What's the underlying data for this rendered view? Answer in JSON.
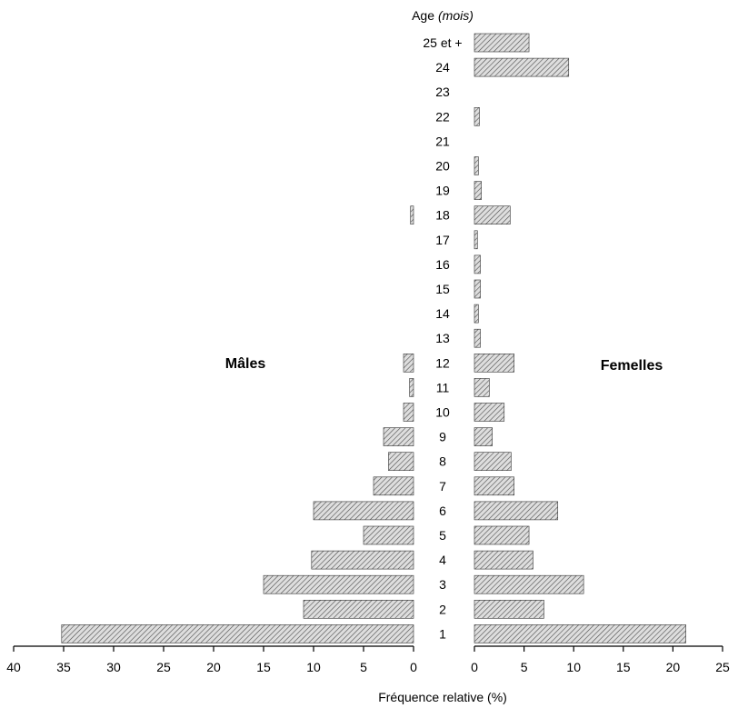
{
  "chart_data": {
    "type": "bar",
    "subtype": "population-pyramid",
    "age_title": "Age",
    "age_unit": "(mois)",
    "categories": [
      "25 et +",
      "24",
      "23",
      "22",
      "21",
      "20",
      "19",
      "18",
      "17",
      "16",
      "15",
      "14",
      "13",
      "12",
      "11",
      "10",
      "9",
      "8",
      "7",
      "6",
      "5",
      "4",
      "3",
      "2",
      "1"
    ],
    "series": [
      {
        "name": "Mâles",
        "side": "left",
        "values": [
          0,
          0,
          0,
          0,
          0,
          0,
          0,
          0.3,
          0,
          0,
          0,
          0,
          0,
          1.0,
          0.4,
          1.0,
          3.0,
          2.5,
          4.0,
          10.0,
          5.0,
          10.2,
          15.0,
          11.0,
          35.2
        ]
      },
      {
        "name": "Femelles",
        "side": "right",
        "values": [
          5.5,
          9.5,
          0,
          0.5,
          0,
          0.4,
          0.7,
          3.6,
          0.3,
          0.6,
          0.6,
          0.4,
          0.6,
          4.0,
          1.5,
          3.0,
          1.8,
          3.7,
          4.0,
          8.4,
          5.5,
          5.9,
          11.0,
          7.0,
          21.3
        ]
      }
    ],
    "xlabel": "Fréquence relative (%)",
    "left_axis": {
      "xlim": [
        0,
        40
      ],
      "ticks": [
        "40",
        "35",
        "30",
        "25",
        "20",
        "15",
        "10",
        "5",
        "0"
      ]
    },
    "right_axis": {
      "xlim": [
        0,
        25
      ],
      "ticks": [
        "0",
        "5",
        "10",
        "15",
        "20",
        "25"
      ]
    },
    "legend": "inline labels: Mâles left, Femelles right",
    "bar_fill": "#c8c8c8",
    "bar_stroke": "#222222"
  }
}
